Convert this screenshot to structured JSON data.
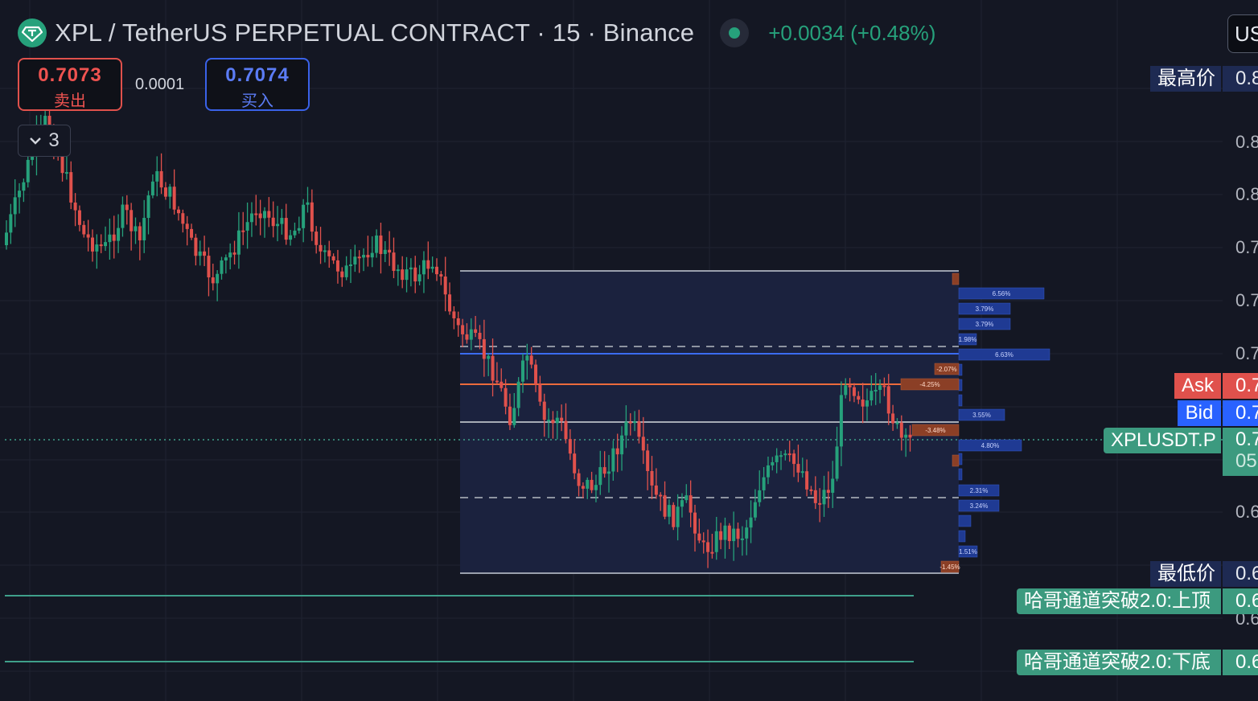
{
  "header": {
    "title": "XPL / TetherUS PERPETUAL CONTRACT · 15 · Binance",
    "change": "+0.0034 (+0.48%)",
    "currency_button": "US"
  },
  "trade": {
    "sell_price": "0.7073",
    "sell_label": "卖出",
    "spread": "0.0001",
    "buy_price": "0.7074",
    "buy_label": "买入"
  },
  "indicators_toggle": {
    "count": "3"
  },
  "price_scale": {
    "ticks": [
      "0.8",
      "0.8",
      "0.7",
      "0.7",
      "0.7",
      "0.6",
      "0.6"
    ],
    "labels": {
      "high": "最高价",
      "high_value": "0.8",
      "ask": "Ask",
      "ask_value": "0.7",
      "bid": "Bid",
      "bid_value": "0.7",
      "symbol": "XPLUSDT.P",
      "symbol_value": "0.7",
      "symbol_countdown": "05",
      "low": "最低价",
      "low_value": "0.6",
      "channel_top": "哈哥通道突破2.0:上顶",
      "channel_top_value": "0.6",
      "channel_bottom": "哈哥通道突破2.0:下底",
      "channel_bottom_value": "0.6"
    }
  },
  "volume_profile": {
    "right_labels": [
      "6.56%",
      "3.79%",
      "3.79%",
      "1.98%",
      "6.63%",
      "3.55%",
      "4.80%",
      "2.31%",
      "3.24%",
      "1.51%"
    ],
    "left_labels": [
      "-2.07%",
      "-4.25%",
      "-3.48%",
      "-1.45%"
    ]
  },
  "colors": {
    "background": "#141723",
    "up": "#26a17b",
    "down": "#e0514c",
    "ask": "#e0514c",
    "bid": "#2962ff",
    "range_fill": "#1b2340",
    "profile_up": "#1f3a93",
    "profile_down": "#8b3f26",
    "channel": "#3fa08a",
    "label_dark": "#1e2a52",
    "symbol": "#3c9a7f"
  },
  "icons": {
    "logo": "tether-icon",
    "status": "market-open-dot-icon",
    "toggle": "chevron-down-icon"
  }
}
